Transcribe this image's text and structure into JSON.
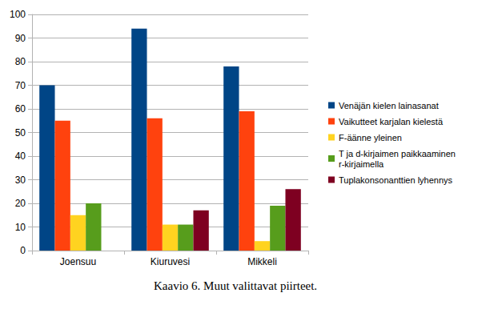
{
  "chart_data": {
    "type": "bar",
    "title": "Kaavio 6. Muut valittavat piirteet.",
    "categories": [
      "Joensuu",
      "Kiuruvesi",
      "Mikkeli"
    ],
    "series": [
      {
        "name": "Venäjän kielen lainasanat",
        "color": "#004586",
        "values": [
          70,
          94,
          78
        ]
      },
      {
        "name": "Vaikutteet karjalan kielestä",
        "color": "#ff420e",
        "values": [
          55,
          56,
          59
        ]
      },
      {
        "name": "F-äänne yleinen",
        "color": "#ffd320",
        "values": [
          15,
          11,
          4
        ]
      },
      {
        "name": "T ja d-kirjaimen paikkaaminen r-kirjaimella",
        "color": "#579d1c",
        "values": [
          20,
          11,
          19
        ]
      },
      {
        "name": "Tuplakonsonanttien lyhennys",
        "color": "#7e0021",
        "values": [
          0,
          17,
          26
        ]
      }
    ],
    "ylim": [
      0,
      100
    ],
    "yticks": [
      0,
      10,
      20,
      30,
      40,
      50,
      60,
      70,
      80,
      90,
      100
    ],
    "grid": true,
    "legend": "right"
  }
}
